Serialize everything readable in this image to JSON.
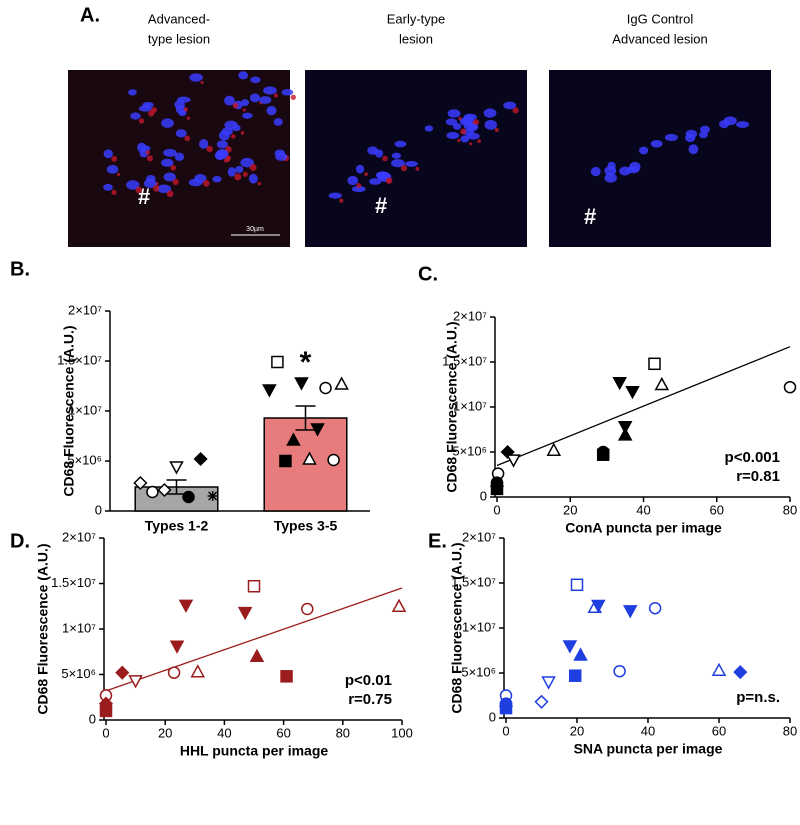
{
  "panel_a": {
    "label": "A.",
    "images": [
      {
        "caption": [
          "Advanced-",
          "type lesion"
        ],
        "marker": "#",
        "scale_bar": "30µm"
      },
      {
        "caption": [
          "Early-type",
          "lesion"
        ],
        "marker": "#"
      },
      {
        "caption": [
          "IgG Control",
          "Advanced lesion"
        ],
        "marker": "#"
      }
    ]
  },
  "chart_data": [
    {
      "type": "bar",
      "panel_label": "B.",
      "ylabel": "CD68 Fluorescence (A.U.)",
      "categories": [
        "Types 1-2",
        "Types 3-5"
      ],
      "values": [
        2400000,
        9300000
      ],
      "errors": [
        700000,
        1200000
      ],
      "colors": [
        "#a6a6a6",
        "#e87b7b"
      ],
      "annotation": "*",
      "points": [
        {
          "values": [
            2800000,
            1900000,
            2100000,
            4400000,
            1400000,
            5200000,
            1500000
          ],
          "markers": [
            "diamond-open",
            "circle-open",
            "diamond-open",
            "tri-down-open",
            "circle",
            "diamond",
            "asterisk"
          ]
        },
        {
          "values": [
            12100000,
            14900000,
            5000000,
            7100000,
            12800000,
            5200000,
            8200000,
            12300000,
            5100000,
            12700000
          ],
          "markers": [
            "tri-down",
            "square-open",
            "square",
            "tri-up",
            "tri-down",
            "tri-up-open",
            "tri-down",
            "circle-open",
            "circle-open",
            "tri-up-open"
          ]
        }
      ],
      "ylim": [
        0,
        20000000
      ],
      "yticks": [
        0,
        {
          "value": 5000000,
          "label": "5×10⁶"
        },
        {
          "value": 10000000,
          "label": "1×10⁷"
        },
        {
          "value": 15000000,
          "label": "1.5×10⁷"
        },
        {
          "value": 20000000,
          "label": "2×10⁷"
        }
      ]
    },
    {
      "type": "scatter",
      "panel_label": "C.",
      "ylabel": "CD68 Fluorescence (A.U.)",
      "xlabel": "ConA puncta per image",
      "xlim": [
        0,
        80
      ],
      "xticks": [
        0,
        20,
        40,
        60,
        80
      ],
      "ylim": [
        0,
        20000000
      ],
      "yticks": [
        0,
        {
          "value": 5000000,
          "label": "5×10⁶"
        },
        {
          "value": 10000000,
          "label": "1×10⁷"
        },
        {
          "value": 15000000,
          "label": "1.5×10⁷"
        },
        {
          "value": 20000000,
          "label": "2×10⁷"
        }
      ],
      "series": [
        {
          "color": "#000000",
          "x": [
            0.3,
            0,
            0,
            0,
            2.9,
            4.5,
            15.5,
            29,
            29,
            33.5,
            37,
            35,
            35,
            43,
            45,
            80
          ],
          "values": [
            2600000,
            1200000,
            1600000,
            900000,
            5000000,
            4100000,
            5200000,
            4700000,
            5000000,
            12700000,
            11700000,
            7800000,
            6900000,
            14800000,
            12500000,
            12200000
          ],
          "markers": [
            "circle-open",
            "diamond",
            "circle",
            "square",
            "diamond",
            "tri-down-open",
            "tri-up-open",
            "square",
            "circle",
            "tri-down",
            "tri-down",
            "tri-down",
            "tri-up",
            "square-open",
            "tri-up-open",
            "circle-open"
          ]
        }
      ],
      "fit": {
        "color": "#000000",
        "x": [
          0,
          80
        ],
        "y": [
          3500000,
          16700000
        ]
      },
      "annotations": [
        "p<0.001",
        "r=0.81"
      ]
    },
    {
      "type": "scatter",
      "panel_label": "D.",
      "ylabel": "CD68 Fluorescence (A.U.)",
      "xlabel": "HHL puncta per image",
      "xlim": [
        0,
        100
      ],
      "xticks": [
        0,
        20,
        40,
        60,
        80,
        100
      ],
      "ylim": [
        0,
        20000000
      ],
      "yticks": [
        0,
        {
          "value": 5000000,
          "label": "5×10⁶"
        },
        {
          "value": 10000000,
          "label": "1×10⁷"
        },
        {
          "value": 15000000,
          "label": "1.5×10⁷"
        },
        {
          "value": 20000000,
          "label": "2×10⁷"
        }
      ],
      "series": [
        {
          "color": "#9b1c1c",
          "x": [
            0,
            0,
            0,
            0,
            5.5,
            10,
            23,
            31,
            24,
            27,
            47,
            50,
            51,
            61,
            68,
            99
          ],
          "values": [
            2700000,
            1800000,
            1300000,
            1000000,
            5200000,
            4300000,
            5200000,
            5300000,
            8100000,
            12600000,
            11800000,
            14700000,
            7000000,
            4800000,
            12200000,
            12500000
          ],
          "markers": [
            "circle-open",
            "diamond",
            "circle",
            "square",
            "diamond",
            "tri-down-open",
            "circle-open",
            "tri-up-open",
            "tri-down",
            "tri-down",
            "tri-down",
            "square-open",
            "tri-up",
            "square",
            "circle-open",
            "tri-up-open"
          ]
        }
      ],
      "fit": {
        "color": "#9b1c1c",
        "x": [
          0,
          100
        ],
        "y": [
          3200000,
          14500000
        ]
      },
      "annotations": [
        "p<0.01",
        "r=0.75"
      ]
    },
    {
      "type": "scatter",
      "panel_label": "E.",
      "ylabel": "CD68 Fluorescence (A.U.)",
      "xlabel": "SNA puncta per image",
      "xlim": [
        0,
        80
      ],
      "xticks": [
        0,
        20,
        40,
        60,
        80
      ],
      "ylim": [
        0,
        20000000
      ],
      "yticks": [
        0,
        {
          "value": 5000000,
          "label": "5×10⁶"
        },
        {
          "value": 10000000,
          "label": "1×10⁷"
        },
        {
          "value": 15000000,
          "label": "1.5×10⁷"
        },
        {
          "value": 20000000,
          "label": "2×10⁷"
        }
      ],
      "series": [
        {
          "color": "#1f3ee0",
          "x": [
            0,
            0,
            0,
            0,
            10,
            12,
            20,
            18,
            21,
            19.5,
            25,
            26,
            35,
            42,
            32,
            60,
            66
          ],
          "values": [
            2500000,
            1300000,
            1600000,
            1100000,
            1800000,
            4000000,
            14800000,
            8000000,
            7000000,
            4700000,
            12300000,
            12500000,
            11900000,
            12200000,
            5200000,
            5300000,
            5100000
          ],
          "markers": [
            "circle-open",
            "diamond",
            "circle",
            "square",
            "diamond-open",
            "tri-down-open",
            "square-open",
            "tri-down",
            "tri-up",
            "square",
            "tri-up-open",
            "tri-down",
            "tri-down",
            "circle-open",
            "circle-open",
            "tri-up-open",
            "diamond"
          ]
        }
      ],
      "annotations": [
        "p=n.s."
      ]
    }
  ]
}
